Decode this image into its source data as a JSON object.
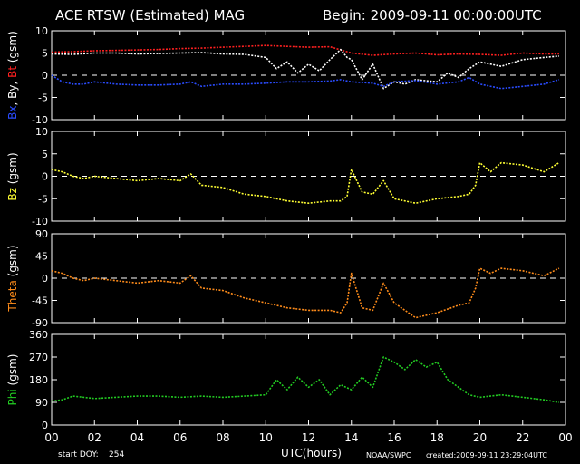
{
  "header": {
    "title": "ACE RTSW (Estimated) MAG",
    "begin_label": "Begin:",
    "begin_value": "2009-09-11 00:00:00UTC"
  },
  "footer": {
    "start_doy_label": "start DOY:",
    "start_doy_value": "254",
    "xlabel": "UTC(hours)",
    "agency": "NOAA/SWPC",
    "created": "created:2009-09-11 23:29:04UTC"
  },
  "colors": {
    "background": "#000000",
    "axis": "#ffffff",
    "bt": "#ff2020",
    "by": "#ffffff",
    "bx": "#2a4cff",
    "bz": "#ffff33",
    "theta": "#ff8c1a",
    "phi": "#22cc22"
  },
  "chart_data": {
    "type": "line",
    "x_ticks": [
      "00",
      "02",
      "04",
      "06",
      "08",
      "10",
      "12",
      "14",
      "16",
      "18",
      "20",
      "22",
      "00"
    ],
    "xlim": [
      0,
      24
    ],
    "xlabel": "UTC(hours)",
    "panels": [
      {
        "id": "bxyt",
        "ylabel_parts": [
          {
            "text": "Bx",
            "color_key": "bx"
          },
          {
            "text": ", By, ",
            "color_key": "by"
          },
          {
            "text": "Bt",
            "color_key": "bt"
          },
          {
            "text": " (gsm)",
            "color_key": "axis"
          }
        ],
        "ylim": [
          -10,
          10
        ],
        "y_ticks": [
          -10,
          -5,
          0,
          5,
          10
        ],
        "zero_line": 0,
        "series": [
          {
            "name": "Bt",
            "color_key": "bt",
            "x": [
              0,
              1,
              2,
              3,
              4,
              5,
              6,
              7,
              8,
              9,
              10,
              11,
              12,
              13,
              14,
              15,
              16,
              17,
              18,
              19,
              20,
              21,
              22,
              23,
              23.7
            ],
            "y": [
              5.2,
              5.3,
              5.5,
              5.6,
              5.7,
              5.8,
              6.0,
              6.1,
              6.3,
              6.5,
              6.7,
              6.5,
              6.3,
              6.4,
              5.0,
              4.5,
              4.8,
              5.0,
              4.6,
              4.8,
              4.7,
              4.5,
              5.0,
              4.8,
              4.8
            ]
          },
          {
            "name": "By",
            "color_key": "by",
            "x": [
              0,
              1,
              2,
              3,
              4,
              5,
              6,
              7,
              8,
              9,
              10,
              10.5,
              11,
              11.5,
              12,
              12.5,
              13,
              13.5,
              13.8,
              14,
              14.5,
              15,
              15.5,
              16,
              16.5,
              17,
              18,
              18.5,
              19,
              19.5,
              20,
              21,
              22,
              23,
              23.7
            ],
            "y": [
              4.8,
              4.7,
              5.0,
              5.0,
              4.8,
              4.9,
              5.0,
              5.1,
              4.8,
              4.7,
              4.0,
              1.5,
              3.0,
              0.5,
              2.5,
              1.0,
              3.5,
              5.8,
              4.0,
              3.5,
              -1.0,
              2.5,
              -3.0,
              -1.5,
              -2.0,
              -1.0,
              -1.5,
              0.5,
              -0.5,
              1.5,
              3.0,
              2.0,
              3.5,
              4.0,
              4.3
            ]
          },
          {
            "name": "Bx",
            "color_key": "bx",
            "x": [
              0,
              0.5,
              1,
              1.5,
              2,
              3,
              4,
              5,
              6,
              6.5,
              7,
              8,
              9,
              10,
              11,
              12,
              13,
              13.5,
              14,
              15,
              15.5,
              16,
              17,
              18,
              19,
              19.5,
              20,
              21,
              22,
              23,
              23.7
            ],
            "y": [
              0.0,
              -1.5,
              -2.0,
              -2.0,
              -1.5,
              -2.0,
              -2.2,
              -2.2,
              -2.0,
              -1.5,
              -2.5,
              -2.0,
              -2.0,
              -1.8,
              -1.5,
              -1.5,
              -1.3,
              -1.0,
              -1.5,
              -1.8,
              -2.5,
              -1.5,
              -1.2,
              -2.0,
              -1.5,
              -0.5,
              -2.0,
              -3.0,
              -2.5,
              -2.0,
              -1.0
            ]
          }
        ]
      },
      {
        "id": "bz",
        "ylabel_parts": [
          {
            "text": "Bz",
            "color_key": "bz"
          },
          {
            "text": " (gsm)",
            "color_key": "axis"
          }
        ],
        "ylim": [
          -10,
          10
        ],
        "y_ticks": [
          -10,
          -5,
          0,
          5,
          10
        ],
        "zero_line": 0,
        "series": [
          {
            "name": "Bz",
            "color_key": "bz",
            "x": [
              0,
              0.5,
              1,
              1.5,
              2,
              3,
              4,
              5,
              6,
              6.5,
              7,
              8,
              9,
              10,
              11,
              12,
              13,
              13.5,
              13.8,
              14,
              14.5,
              15,
              15.5,
              16,
              17,
              18,
              19,
              19.5,
              19.8,
              20,
              20.5,
              21,
              22,
              23,
              23.7
            ],
            "y": [
              1.5,
              1.0,
              0.0,
              -0.5,
              0.0,
              -0.5,
              -1.0,
              -0.5,
              -1.0,
              0.5,
              -2.0,
              -2.5,
              -4.0,
              -4.5,
              -5.5,
              -6.0,
              -5.5,
              -5.5,
              -4.5,
              1.5,
              -3.5,
              -4.0,
              -1.0,
              -5.0,
              -6.0,
              -5.0,
              -4.5,
              -4.0,
              -2.0,
              3.0,
              1.0,
              3.0,
              2.5,
              1.0,
              3.0
            ]
          }
        ]
      },
      {
        "id": "theta",
        "ylabel_parts": [
          {
            "text": "Theta",
            "color_key": "theta"
          },
          {
            "text": " (gsm)",
            "color_key": "axis"
          }
        ],
        "ylim": [
          -90,
          90
        ],
        "y_ticks": [
          -90,
          -45,
          0,
          45,
          90
        ],
        "zero_line": 0,
        "series": [
          {
            "name": "Theta",
            "color_key": "theta",
            "x": [
              0,
              0.5,
              1,
              1.5,
              2,
              3,
              4,
              5,
              6,
              6.5,
              7,
              8,
              9,
              10,
              11,
              12,
              13,
              13.5,
              13.8,
              14,
              14.5,
              15,
              15.5,
              16,
              17,
              18,
              19,
              19.5,
              19.8,
              20,
              20.5,
              21,
              22,
              23,
              23.7
            ],
            "y": [
              15,
              10,
              0,
              -5,
              0,
              -5,
              -10,
              -5,
              -10,
              5,
              -20,
              -25,
              -40,
              -50,
              -60,
              -65,
              -65,
              -70,
              -50,
              10,
              -60,
              -65,
              -10,
              -50,
              -80,
              -70,
              -55,
              -50,
              -20,
              20,
              10,
              20,
              15,
              5,
              20
            ]
          }
        ]
      },
      {
        "id": "phi",
        "ylabel_parts": [
          {
            "text": "Phi",
            "color_key": "phi"
          },
          {
            "text": " (gsm)",
            "color_key": "axis"
          }
        ],
        "ylim": [
          0,
          360
        ],
        "y_ticks": [
          0,
          90,
          180,
          270,
          360
        ],
        "zero_line": null,
        "series": [
          {
            "name": "Phi",
            "color_key": "phi",
            "x": [
              0,
              0.5,
              1,
              1.5,
              2,
              3,
              4,
              5,
              6,
              7,
              8,
              9,
              10,
              10.5,
              11,
              11.5,
              12,
              12.5,
              13,
              13.5,
              14,
              14.5,
              15,
              15.5,
              16,
              16.5,
              17,
              17.5,
              18,
              18.5,
              19,
              19.5,
              20,
              21,
              22,
              23,
              23.7
            ],
            "y": [
              95,
              100,
              115,
              110,
              105,
              110,
              115,
              115,
              110,
              115,
              110,
              115,
              120,
              180,
              140,
              190,
              150,
              180,
              120,
              160,
              140,
              190,
              150,
              270,
              250,
              220,
              260,
              230,
              250,
              180,
              150,
              120,
              110,
              120,
              110,
              100,
              90
            ]
          }
        ]
      }
    ]
  }
}
